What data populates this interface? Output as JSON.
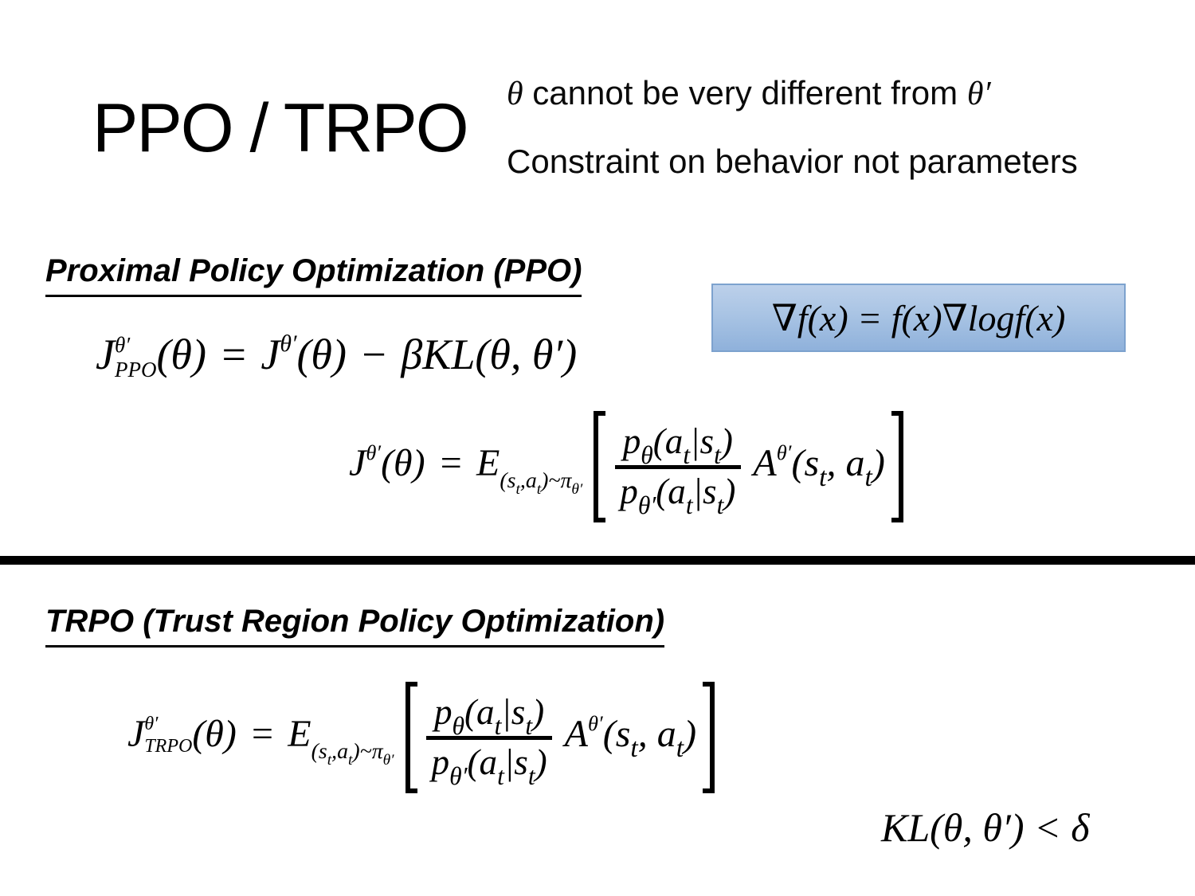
{
  "slide": {
    "title": "PPO / TRPO",
    "note_line1": {
      "theta": "θ",
      "middle": " cannot be very different from ",
      "theta_prime": "θ′"
    },
    "note_line2": "Constraint on behavior not parameters"
  },
  "ppo": {
    "heading": "Proximal Policy Optimization (PPO)",
    "objective": {
      "J1": "J",
      "J1_sup": "θ′",
      "J1_sub": "PPO",
      "arg1": "(θ)",
      "eq": "=",
      "J2": "J",
      "J2_sup": "θ′",
      "arg2": "(θ)",
      "minus": "−",
      "penalty": "βKL(θ, θ′)"
    },
    "identity": "∇f(x) = f(x)∇logf(x)",
    "surrogate": {
      "J": "J",
      "J_sup": "θ′",
      "arg": "(θ)",
      "eq": "=",
      "E": "E",
      "E_sub": {
        "o": "(s",
        "t1": "t",
        "m": ",a",
        "t2": "t",
        "x": ")~π",
        "pi_sub": "θ′"
      },
      "num": {
        "p": "p",
        "p_sub": "θ",
        "o": "(a",
        "t1": "t",
        "m": "|s",
        "t2": "t",
        "x": ")"
      },
      "den": {
        "p": "p",
        "p_sub": "θ′",
        "o": "(a",
        "t1": "t",
        "m": "|s",
        "t2": "t",
        "x": ")"
      },
      "A": "A",
      "A_sup": "θ′",
      "A_arg": {
        "o": "(s",
        "t1": "t",
        "m": ", a",
        "t2": "t",
        "x": ")"
      }
    }
  },
  "trpo": {
    "heading": "TRPO (Trust Region Policy Optimization)",
    "objective": {
      "J": "J",
      "J_sup": "θ′",
      "J_sub": "TRPO",
      "arg": "(θ)",
      "eq": "=",
      "E": "E",
      "E_sub": {
        "o": "(s",
        "t1": "t",
        "m": ",a",
        "t2": "t",
        "x": ")~π",
        "pi_sub": "θ′"
      },
      "num": {
        "p": "p",
        "p_sub": "θ",
        "o": "(a",
        "t1": "t",
        "m": "|s",
        "t2": "t",
        "x": ")"
      },
      "den": {
        "p": "p",
        "p_sub": "θ′",
        "o": "(a",
        "t1": "t",
        "m": "|s",
        "t2": "t",
        "x": ")"
      },
      "A": "A",
      "A_sup": "θ′",
      "A_arg": {
        "o": "(s",
        "t1": "t",
        "m": ", a",
        "t2": "t",
        "x": ")"
      }
    },
    "constraint": "KL(θ, θ′) < δ"
  },
  "colors": {
    "text": "#000000",
    "identity_box_top": "#bcd0ea",
    "identity_box_bottom": "#8fb1db",
    "identity_box_border": "#7da2ce",
    "divider": "#000000"
  }
}
